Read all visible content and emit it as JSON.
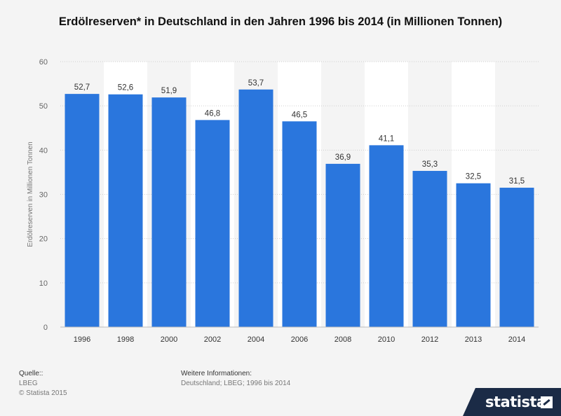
{
  "chart_data": {
    "type": "bar",
    "title": "Erdölreserven* in Deutschland in den Jahren 1996 bis 2014 (in Millionen Tonnen)",
    "xlabel": "",
    "ylabel": "Erdölreserven in Millionen Tonnen",
    "ylim": [
      0,
      60
    ],
    "yticks": [
      0,
      10,
      20,
      30,
      40,
      50,
      60
    ],
    "grid": true,
    "categories": [
      "1996",
      "1998",
      "2000",
      "2002",
      "2004",
      "2006",
      "2008",
      "2010",
      "2012",
      "2013",
      "2014"
    ],
    "values": [
      52.7,
      52.6,
      51.9,
      46.8,
      53.7,
      46.5,
      36.9,
      41.1,
      35.3,
      32.5,
      31.5
    ],
    "value_labels": [
      "52,7",
      "52,6",
      "51,9",
      "46,8",
      "53,7",
      "46,5",
      "36,9",
      "41,1",
      "35,3",
      "32,5",
      "31,5"
    ],
    "bar_color": "#2a76dd"
  },
  "footer": {
    "source_heading": "Quelle::",
    "source_name": "LBEG",
    "copyright": "© Statista 2015",
    "info_heading": "Weitere Informationen:",
    "info_text": "Deutschland; LBEG; 1996 bis 2014"
  },
  "brand": {
    "name": "statista",
    "icon": "statista-logo-icon"
  }
}
